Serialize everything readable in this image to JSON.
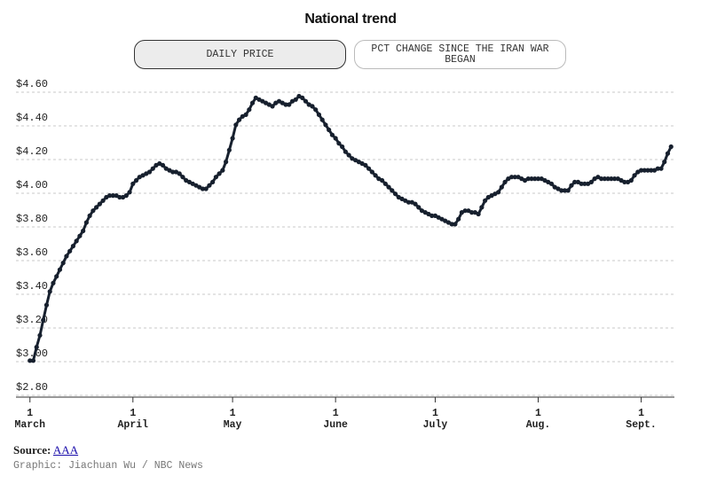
{
  "chart_data": {
    "type": "line",
    "title": "National trend",
    "x": [
      0,
      1,
      2,
      3,
      4,
      5,
      6,
      7,
      8,
      9,
      10,
      11,
      12,
      13,
      14,
      15,
      16,
      17,
      18,
      19,
      20,
      21,
      22,
      23,
      24,
      25,
      26,
      27,
      28,
      29,
      30,
      31,
      32,
      33,
      34,
      35,
      36,
      37,
      38,
      39,
      40,
      41,
      42,
      43,
      44,
      45,
      46,
      47,
      48,
      49,
      50,
      51,
      52,
      53,
      54,
      55,
      56,
      57,
      58,
      59,
      60,
      61,
      62,
      63,
      64,
      65,
      66,
      67,
      68,
      69,
      70,
      71,
      72,
      73,
      74,
      75,
      76,
      77,
      78,
      79,
      80,
      81,
      82,
      83,
      84,
      85,
      86,
      87,
      88,
      89,
      90,
      91,
      92,
      93,
      94,
      95,
      96,
      97,
      98,
      99,
      100,
      101,
      102,
      103,
      104,
      105,
      106,
      107,
      108,
      109,
      110,
      111,
      112,
      113,
      114,
      115,
      116,
      117,
      118,
      119,
      120,
      121,
      122,
      123,
      124,
      125,
      126,
      127,
      128,
      129,
      130,
      131,
      132,
      133,
      134,
      135,
      136,
      137,
      138,
      139,
      140,
      141,
      142,
      143,
      144,
      145,
      146,
      147,
      148,
      149,
      150,
      151,
      152,
      153,
      154,
      155,
      156,
      157,
      158,
      159,
      160,
      161,
      162,
      163,
      164,
      165,
      166,
      167,
      168,
      169,
      170,
      171,
      172,
      173,
      174,
      175,
      176,
      177,
      178,
      179,
      180,
      181,
      182,
      183,
      184,
      185,
      186,
      187,
      188,
      189,
      190,
      191,
      192,
      193
    ],
    "series": [
      {
        "color": "#17202e",
        "values": [
          2.98,
          2.98,
          3.06,
          3.13,
          3.22,
          3.31,
          3.39,
          3.44,
          3.48,
          3.52,
          3.56,
          3.6,
          3.63,
          3.66,
          3.69,
          3.72,
          3.75,
          3.8,
          3.84,
          3.87,
          3.89,
          3.91,
          3.93,
          3.95,
          3.96,
          3.96,
          3.96,
          3.95,
          3.95,
          3.96,
          3.98,
          4.03,
          4.05,
          4.07,
          4.08,
          4.09,
          4.1,
          4.12,
          4.14,
          4.15,
          4.14,
          4.12,
          4.11,
          4.1,
          4.1,
          4.09,
          4.07,
          4.05,
          4.04,
          4.03,
          4.02,
          4.01,
          4.0,
          4.0,
          4.02,
          4.04,
          4.07,
          4.09,
          4.11,
          4.16,
          4.23,
          4.3,
          4.38,
          4.41,
          4.43,
          4.44,
          4.47,
          4.51,
          4.54,
          4.53,
          4.52,
          4.51,
          4.5,
          4.49,
          4.51,
          4.52,
          4.51,
          4.5,
          4.5,
          4.52,
          4.53,
          4.55,
          4.54,
          4.52,
          4.5,
          4.49,
          4.47,
          4.44,
          4.41,
          4.38,
          4.35,
          4.32,
          4.3,
          4.27,
          4.25,
          4.22,
          4.2,
          4.18,
          4.17,
          4.16,
          4.15,
          4.14,
          4.12,
          4.1,
          4.08,
          4.06,
          4.05,
          4.03,
          4.01,
          3.99,
          3.97,
          3.95,
          3.94,
          3.93,
          3.92,
          3.92,
          3.91,
          3.89,
          3.87,
          3.86,
          3.85,
          3.84,
          3.84,
          3.83,
          3.82,
          3.81,
          3.8,
          3.79,
          3.79,
          3.82,
          3.86,
          3.87,
          3.87,
          3.86,
          3.86,
          3.85,
          3.89,
          3.93,
          3.95,
          3.96,
          3.97,
          3.98,
          4.01,
          4.04,
          4.06,
          4.07,
          4.07,
          4.07,
          4.06,
          4.05,
          4.06,
          4.06,
          4.06,
          4.06,
          4.06,
          4.05,
          4.04,
          4.03,
          4.01,
          4.0,
          3.99,
          3.99,
          3.99,
          4.02,
          4.04,
          4.04,
          4.03,
          4.03,
          4.03,
          4.04,
          4.06,
          4.07,
          4.06,
          4.06,
          4.06,
          4.06,
          4.06,
          4.06,
          4.05,
          4.04,
          4.04,
          4.05,
          4.08,
          4.1,
          4.11,
          4.11,
          4.11,
          4.11,
          4.11,
          4.12,
          4.12,
          4.16,
          4.21,
          4.25
        ]
      }
    ],
    "xlim": [
      -1,
      194
    ],
    "xticks": [
      {
        "value": 0,
        "label": "1\nMarch"
      },
      {
        "value": 31,
        "label": "1\nApril"
      },
      {
        "value": 61,
        "label": "1\nMay"
      },
      {
        "value": 92,
        "label": "1\nJune"
      },
      {
        "value": 122,
        "label": "1\nJuly"
      },
      {
        "value": 153,
        "label": "1\nAug."
      },
      {
        "value": 184,
        "label": "1\nSept."
      }
    ],
    "ylim": [
      2.8,
      4.6
    ],
    "yticks": [
      {
        "value": 2.8,
        "label": "$2.80"
      },
      {
        "value": 3.0,
        "label": "$3.00"
      },
      {
        "value": 3.2,
        "label": "$3.20"
      },
      {
        "value": 3.4,
        "label": "$3.40"
      },
      {
        "value": 3.6,
        "label": "$3.60"
      },
      {
        "value": 3.8,
        "label": "$3.80"
      },
      {
        "value": 4.0,
        "label": "$4.00"
      },
      {
        "value": 4.2,
        "label": "$4.20"
      },
      {
        "value": 4.4,
        "label": "$4.40"
      },
      {
        "value": 4.6,
        "label": "$4.60"
      }
    ],
    "grid": true
  },
  "tabs": [
    "DAILY PRICE",
    "PCT CHANGE SINCE THE IRAN WAR BEGAN"
  ],
  "selected_tab": 0,
  "source": {
    "label": "Source:",
    "link": "AAA"
  },
  "credit": "Graphic: Jiachuan Wu / NBC News"
}
